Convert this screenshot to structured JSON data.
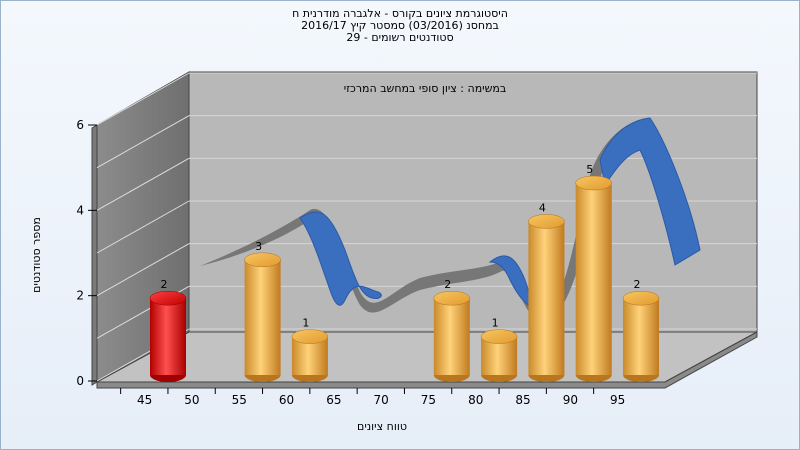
{
  "title_lines": [
    "היסטוגרמת ציונים בקורס - אלגברה מודרנית ח",
    "במחסנ  (03/2016)  סמסטר קיץ  2016/17",
    "סטודנטים רשומים - 29"
  ],
  "colors": {
    "highlight_bar": "#e02020",
    "bar": "#f0b040",
    "ribbon": "#3a6fbf",
    "wall": "#b8b8b8"
  },
  "chart_data": {
    "type": "bar",
    "title": "במשימה : ציון סופי במחשב המרכזי",
    "xlabel": "טווח ציונים",
    "ylabel": "מספר סטודנטים",
    "ylim": [
      0,
      6
    ],
    "yticks": [
      "0",
      "2",
      "4",
      "6"
    ],
    "xticks": [
      "45",
      "50",
      "55",
      "60",
      "65",
      "70",
      "75",
      "80",
      "85",
      "90",
      "95"
    ],
    "bars": [
      {
        "label": "2",
        "value": 2,
        "color": "#e02020",
        "slot": 0
      },
      {
        "label": "3",
        "value": 3,
        "color": "#f0b040",
        "slot": 2
      },
      {
        "label": "1",
        "value": 1,
        "color": "#f0b040",
        "slot": 3
      },
      {
        "label": "2",
        "value": 2,
        "color": "#f0b040",
        "slot": 6
      },
      {
        "label": "1",
        "value": 1,
        "color": "#f0b040",
        "slot": 7
      },
      {
        "label": "4",
        "value": 4,
        "color": "#f0b040",
        "slot": 8
      },
      {
        "label": "5",
        "value": 5,
        "color": "#f0b040",
        "slot": 9
      },
      {
        "label": "2",
        "value": 2,
        "color": "#f0b040",
        "slot": 10
      }
    ],
    "grid": true,
    "legend": "none"
  }
}
